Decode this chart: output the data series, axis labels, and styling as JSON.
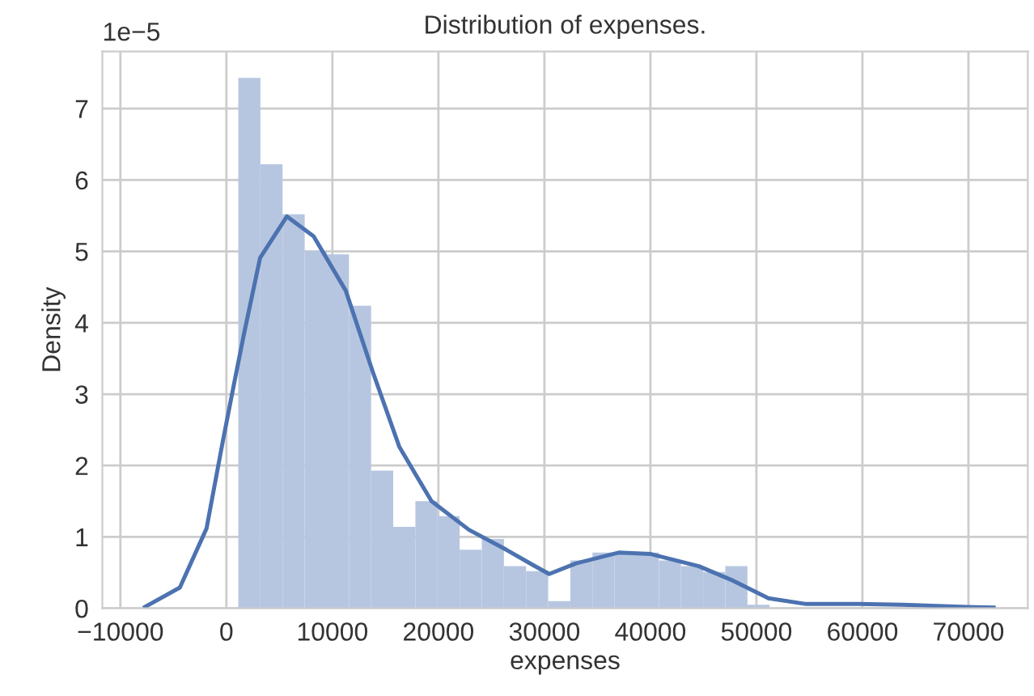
{
  "chart_data": {
    "type": "histogram",
    "title": "Distribution of expenses.",
    "xlabel": "expenses",
    "ylabel": "Density",
    "annotations": [
      "1e−5"
    ],
    "bins": [
      1122,
      3210,
      5299,
      7387,
      9475,
      11564,
      13652,
      15740,
      17828,
      19917,
      22005,
      24093,
      26182,
      28270,
      30358,
      32447,
      34535,
      36623,
      38711,
      40800,
      42888,
      44976,
      47065,
      49153,
      51241,
      53330,
      55418,
      57506,
      59594,
      61683,
      63771
    ],
    "values": [
      7.43,
      6.22,
      5.52,
      5.01,
      4.96,
      4.24,
      1.93,
      1.14,
      1.5,
      1.29,
      0.82,
      0.97,
      0.59,
      0.52,
      0.1,
      0.67,
      0.78,
      0.78,
      0.78,
      0.67,
      0.59,
      0.51,
      0.59,
      0.05,
      0,
      0,
      0,
      null,
      0,
      null
    ],
    "color": "#b7c6e0",
    "series": [
      {
        "type": "line",
        "color": "#4c72b0",
        "x": [
          -7680,
          -4390,
          -1870,
          -350,
          650,
          1670,
          3180,
          5710,
          8230,
          11260,
          13790,
          16320,
          19350,
          22880,
          26410,
          29000,
          30450,
          32980,
          37000,
          40030,
          44570,
          47600,
          51140,
          54700,
          59700,
          63790,
          69850,
          72380
        ],
        "values": [
          0.02,
          0.29,
          1.12,
          2.33,
          3.09,
          3.85,
          4.91,
          5.49,
          5.21,
          4.45,
          3.32,
          2.26,
          1.5,
          1.1,
          0.82,
          0.6,
          0.48,
          0.63,
          0.78,
          0.76,
          0.59,
          0.4,
          0.14,
          0.06,
          0.06,
          0.05,
          0.02,
          0.01
        ]
      }
    ],
    "xlim": [
      -11700,
      75600
    ],
    "xticks": [
      -10000,
      0,
      10000,
      20000,
      30000,
      40000,
      50000,
      60000,
      70000
    ],
    "ylim": [
      0,
      7.8
    ],
    "yticks": [
      0,
      1,
      2,
      3,
      4,
      5,
      6,
      7
    ],
    "grid": true,
    "legend": false
  }
}
